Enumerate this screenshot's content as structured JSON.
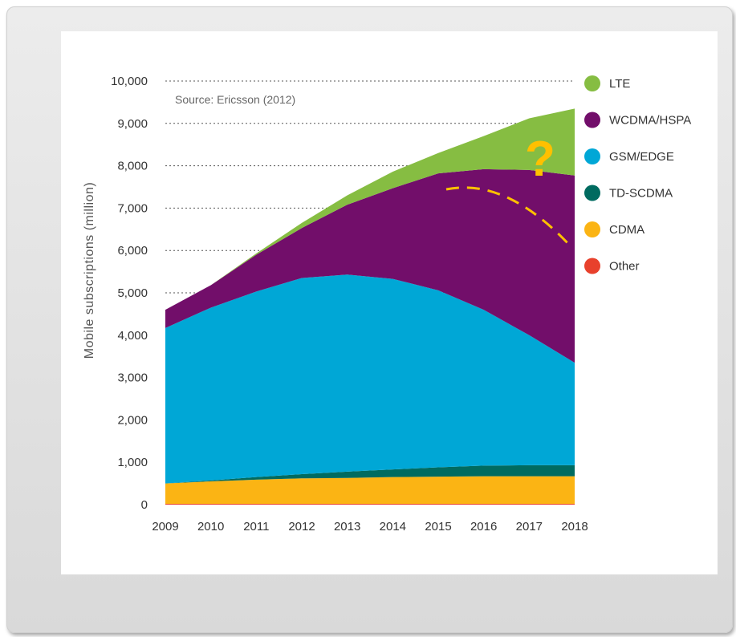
{
  "chart_data": {
    "type": "area",
    "stacked": true,
    "title": "",
    "xlabel": "",
    "ylabel": "Mobile subscriptions (million)",
    "ylim": [
      0,
      10000
    ],
    "yticks": [
      "0",
      "1,000",
      "2,000",
      "3,000",
      "4,000",
      "5,000",
      "6,000",
      "7,000",
      "8,000",
      "9,000",
      "10,000"
    ],
    "grid": "dotted horizontal",
    "legend_position": "right",
    "annotations": {
      "source": "Source: Ericsson (2012)",
      "question_mark": "?"
    },
    "x": [
      "2009",
      "2010",
      "2011",
      "2012",
      "2013",
      "2014",
      "2015",
      "2016",
      "2017",
      "2018"
    ],
    "series": [
      {
        "name": "Other",
        "color": "#e8412c",
        "values": [
          20,
          20,
          20,
          20,
          20,
          20,
          20,
          20,
          20,
          20
        ]
      },
      {
        "name": "CDMA",
        "color": "#fbb414",
        "values": [
          480,
          530,
          570,
          600,
          610,
          630,
          640,
          650,
          650,
          650
        ]
      },
      {
        "name": "TD-SCDMA",
        "color": "#006b60",
        "values": [
          0,
          20,
          60,
          100,
          150,
          180,
          220,
          250,
          260,
          260
        ]
      },
      {
        "name": "GSM/EDGE",
        "color": "#00a7d6",
        "values": [
          3670,
          4080,
          4380,
          4630,
          4650,
          4500,
          4180,
          3680,
          3070,
          2420
        ]
      },
      {
        "name": "WCDMA/HSPA",
        "color": "#720e6a",
        "values": [
          430,
          530,
          870,
          1180,
          1650,
          2140,
          2760,
          3320,
          3900,
          4420
        ]
      },
      {
        "name": "LTE",
        "color": "#86bd42",
        "values": [
          0,
          0,
          30,
          120,
          220,
          390,
          480,
          780,
          1220,
          1580
        ]
      }
    ]
  }
}
